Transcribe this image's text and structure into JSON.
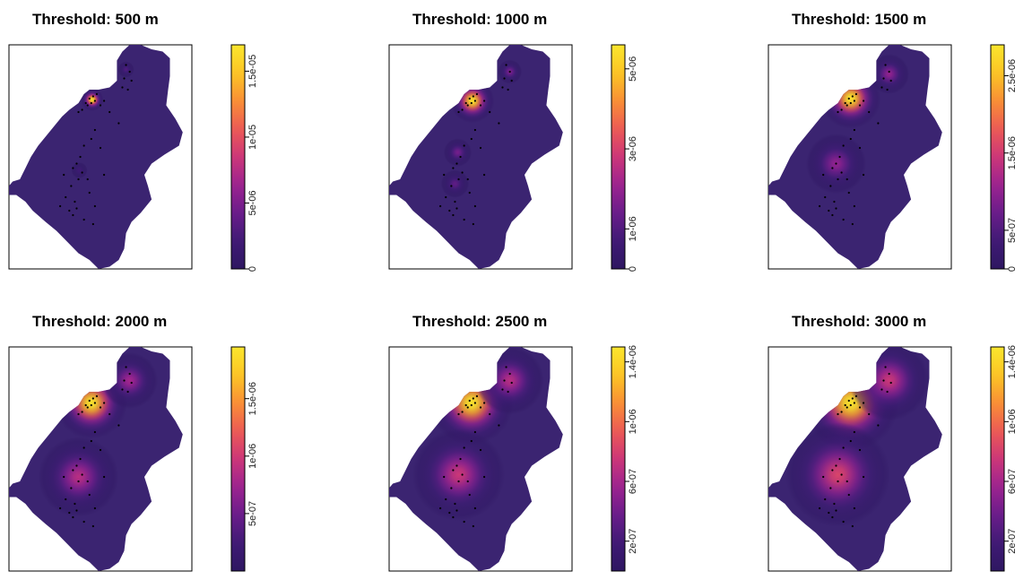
{
  "figure": {
    "colors": {
      "palette": [
        "#2e1761",
        "#3f1a75",
        "#6a1d8a",
        "#9c2390",
        "#cc3778",
        "#ec5a55",
        "#f98f36",
        "#fcc625",
        "#fbe62e"
      ],
      "background_region": "#3b2471",
      "points": "#000000",
      "frame": "#000000"
    }
  },
  "chart_data": [
    {
      "type": "heatmap",
      "title": "Threshold: 500 m",
      "value_range": [
        0,
        1.7e-05
      ],
      "colorbar_ticks": [
        {
          "value": 0,
          "label": "0"
        },
        {
          "value": 5e-06,
          "label": "5e-06"
        },
        {
          "value": 1e-05,
          "label": "1e-05"
        },
        {
          "value": 1.5e-05,
          "label": "1.5e-05"
        }
      ],
      "hotspots": [
        {
          "x": 0.455,
          "y": 0.245,
          "peak": 1.0,
          "spread": 0.028
        },
        {
          "x": 0.64,
          "y": 0.11,
          "peak": 0.18,
          "spread": 0.02
        },
        {
          "x": 0.385,
          "y": 0.56,
          "peak": 0.12,
          "spread": 0.02
        }
      ]
    },
    {
      "type": "heatmap",
      "title": "Threshold: 1000 m",
      "value_range": [
        0,
        5.6e-06
      ],
      "colorbar_ticks": [
        {
          "value": 0,
          "label": "0"
        },
        {
          "value": 1e-06,
          "label": "1e-06"
        },
        {
          "value": 3e-06,
          "label": "3e-06"
        },
        {
          "value": 5e-06,
          "label": "5e-06"
        }
      ],
      "hotspots": [
        {
          "x": 0.455,
          "y": 0.25,
          "peak": 1.0,
          "spread": 0.055
        },
        {
          "x": 0.66,
          "y": 0.12,
          "peak": 0.3,
          "spread": 0.03
        },
        {
          "x": 0.375,
          "y": 0.48,
          "peak": 0.28,
          "spread": 0.035
        },
        {
          "x": 0.36,
          "y": 0.62,
          "peak": 0.22,
          "spread": 0.035
        }
      ]
    },
    {
      "type": "heatmap",
      "title": "Threshold: 1500 m",
      "value_range": [
        0,
        2.9e-06
      ],
      "colorbar_ticks": [
        {
          "value": 0,
          "label": "0"
        },
        {
          "value": 5e-07,
          "label": "5e-07"
        },
        {
          "value": 1.5e-06,
          "label": "1.5e-06"
        },
        {
          "value": 2.5e-06,
          "label": "2.5e-06"
        }
      ],
      "hotspots": [
        {
          "x": 0.45,
          "y": 0.24,
          "peak": 1.0,
          "spread": 0.075
        },
        {
          "x": 0.66,
          "y": 0.13,
          "peak": 0.35,
          "spread": 0.05
        },
        {
          "x": 0.37,
          "y": 0.53,
          "peak": 0.35,
          "spread": 0.075
        }
      ]
    },
    {
      "type": "heatmap",
      "title": "Threshold: 2000 m",
      "value_range": [
        0,
        1.95e-06
      ],
      "colorbar_ticks": [
        {
          "value": 5e-07,
          "label": "5e-07"
        },
        {
          "value": 1e-06,
          "label": "1e-06"
        },
        {
          "value": 1.5e-06,
          "label": "1.5e-06"
        }
      ],
      "hotspots": [
        {
          "x": 0.45,
          "y": 0.25,
          "peak": 1.0,
          "spread": 0.09
        },
        {
          "x": 0.66,
          "y": 0.15,
          "peak": 0.4,
          "spread": 0.07
        },
        {
          "x": 0.38,
          "y": 0.58,
          "peak": 0.45,
          "spread": 0.1
        }
      ]
    },
    {
      "type": "heatmap",
      "title": "Threshold: 2500 m",
      "value_range": [
        0,
        1.5e-06
      ],
      "colorbar_ticks": [
        {
          "value": 2e-07,
          "label": "2e-07"
        },
        {
          "value": 6e-07,
          "label": "6e-07"
        },
        {
          "value": 1e-06,
          "label": "1e-06"
        },
        {
          "value": 1.4e-06,
          "label": "1.4e-06"
        }
      ],
      "hotspots": [
        {
          "x": 0.45,
          "y": 0.25,
          "peak": 1.0,
          "spread": 0.105
        },
        {
          "x": 0.66,
          "y": 0.15,
          "peak": 0.45,
          "spread": 0.085
        },
        {
          "x": 0.38,
          "y": 0.57,
          "peak": 0.5,
          "spread": 0.115
        }
      ]
    },
    {
      "type": "heatmap",
      "title": "Threshold: 3000 m",
      "value_range": [
        0,
        1.5e-06
      ],
      "colorbar_ticks": [
        {
          "value": 2e-07,
          "label": "2e-07"
        },
        {
          "value": 6e-07,
          "label": "6e-07"
        },
        {
          "value": 1e-06,
          "label": "1e-06"
        },
        {
          "value": 1.4e-06,
          "label": "1.4e-06"
        }
      ],
      "hotspots": [
        {
          "x": 0.45,
          "y": 0.25,
          "peak": 1.0,
          "spread": 0.12
        },
        {
          "x": 0.66,
          "y": 0.15,
          "peak": 0.5,
          "spread": 0.1
        },
        {
          "x": 0.38,
          "y": 0.57,
          "peak": 0.55,
          "spread": 0.13
        }
      ]
    }
  ],
  "points": [
    [
      0.44,
      0.24
    ],
    [
      0.46,
      0.23
    ],
    [
      0.45,
      0.26
    ],
    [
      0.47,
      0.25
    ],
    [
      0.43,
      0.27
    ],
    [
      0.48,
      0.22
    ],
    [
      0.42,
      0.26
    ],
    [
      0.5,
      0.27
    ],
    [
      0.52,
      0.25
    ],
    [
      0.4,
      0.29
    ],
    [
      0.38,
      0.3
    ],
    [
      0.55,
      0.3
    ],
    [
      0.64,
      0.09
    ],
    [
      0.66,
      0.12
    ],
    [
      0.63,
      0.15
    ],
    [
      0.67,
      0.16
    ],
    [
      0.65,
      0.2
    ],
    [
      0.62,
      0.19
    ],
    [
      0.47,
      0.38
    ],
    [
      0.45,
      0.42
    ],
    [
      0.41,
      0.45
    ],
    [
      0.39,
      0.5
    ],
    [
      0.37,
      0.53
    ],
    [
      0.35,
      0.55
    ],
    [
      0.4,
      0.57
    ],
    [
      0.38,
      0.6
    ],
    [
      0.34,
      0.63
    ],
    [
      0.31,
      0.68
    ],
    [
      0.36,
      0.7
    ],
    [
      0.33,
      0.74
    ],
    [
      0.37,
      0.73
    ],
    [
      0.35,
      0.76
    ],
    [
      0.44,
      0.66
    ],
    [
      0.47,
      0.72
    ],
    [
      0.3,
      0.58
    ],
    [
      0.43,
      0.6
    ],
    [
      0.5,
      0.46
    ],
    [
      0.52,
      0.58
    ],
    [
      0.28,
      0.72
    ],
    [
      0.41,
      0.78
    ],
    [
      0.46,
      0.8
    ],
    [
      0.6,
      0.35
    ]
  ]
}
